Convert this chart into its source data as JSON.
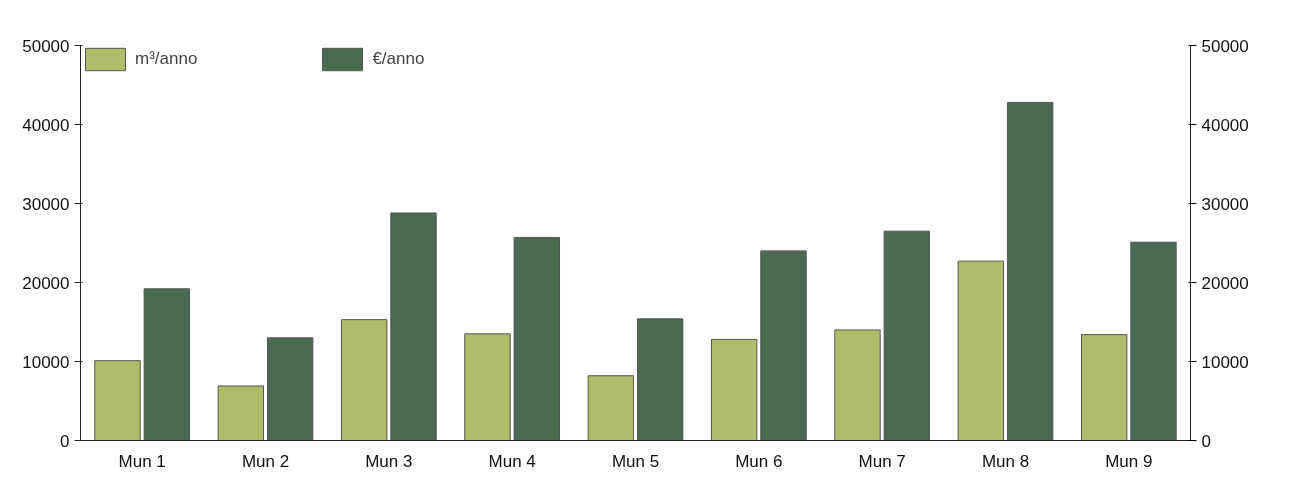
{
  "chart_data": {
    "type": "bar",
    "categories": [
      "Mun 1",
      "Mun 2",
      "Mun 3",
      "Mun 4",
      "Mun 5",
      "Mun 6",
      "Mun 7",
      "Mun 8",
      "Mun 9"
    ],
    "series": [
      {
        "name": "m³/anno",
        "color": "#b0bc6a",
        "values": [
          10100,
          6900,
          15300,
          13500,
          8200,
          12800,
          14000,
          22700,
          13400
        ]
      },
      {
        "name": "€/anno",
        "color": "#4a6b50",
        "values": [
          19200,
          13000,
          28800,
          25700,
          15400,
          24000,
          26500,
          42800,
          25100
        ]
      }
    ],
    "ylim": [
      0,
      50000
    ],
    "yticks": [
      0,
      10000,
      20000,
      30000,
      40000,
      50000
    ],
    "y2lim": [
      0,
      50000
    ],
    "y2ticks": [
      0,
      10000,
      20000,
      30000,
      40000,
      50000
    ],
    "grid": false,
    "legend": "top"
  }
}
